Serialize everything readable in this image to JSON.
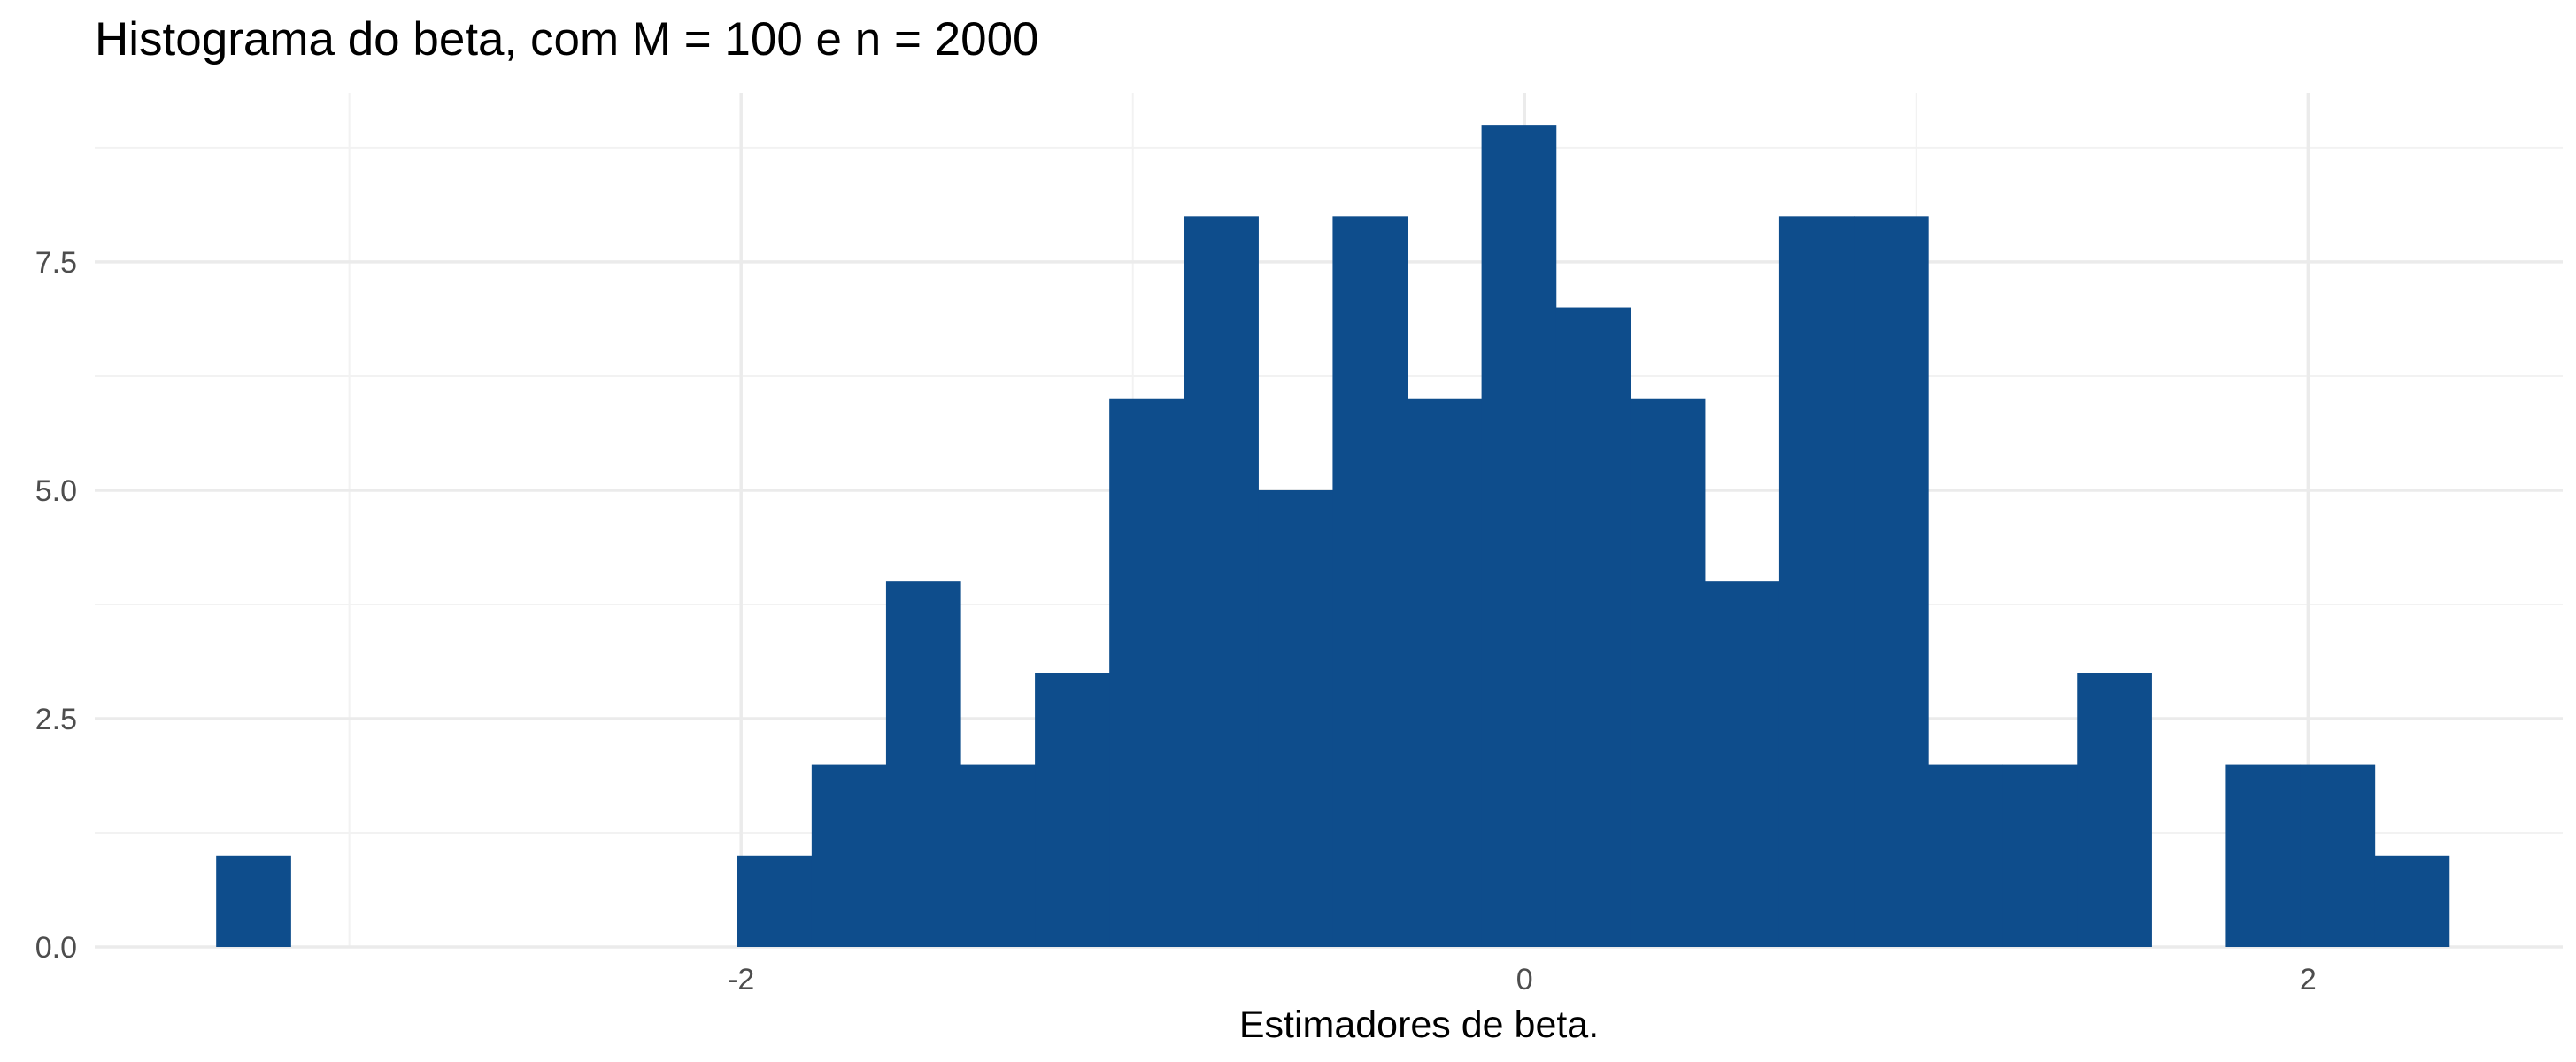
{
  "chart_data": {
    "type": "bar",
    "title": "Histograma do beta, com M = 100 e n = 2000",
    "xlabel": "Estimadores de beta.",
    "ylabel": "",
    "xlim": [
      -3.65,
      2.65
    ],
    "ylim": [
      0,
      9.35
    ],
    "bin_width": 0.19,
    "x_ticks": [
      -2,
      0,
      2
    ],
    "x_tick_labels": [
      "-2",
      "0",
      "2"
    ],
    "y_ticks": [
      0,
      2.5,
      5,
      7.5
    ],
    "y_tick_labels": [
      "0.0",
      "2.5",
      "5.0",
      "7.5"
    ],
    "grid": true,
    "bar_color": "#0e4d8c",
    "bins": [
      {
        "x0": -3.34,
        "x1": -3.15,
        "count": 1
      },
      {
        "x0": -2.01,
        "x1": -1.82,
        "count": 1
      },
      {
        "x0": -1.82,
        "x1": -1.63,
        "count": 2
      },
      {
        "x0": -1.63,
        "x1": -1.44,
        "count": 4
      },
      {
        "x0": -1.44,
        "x1": -1.25,
        "count": 2
      },
      {
        "x0": -1.25,
        "x1": -1.06,
        "count": 3
      },
      {
        "x0": -1.06,
        "x1": -0.87,
        "count": 6
      },
      {
        "x0": -0.87,
        "x1": -0.68,
        "count": 8
      },
      {
        "x0": -0.68,
        "x1": -0.49,
        "count": 5
      },
      {
        "x0": -0.49,
        "x1": -0.3,
        "count": 8
      },
      {
        "x0": -0.3,
        "x1": -0.11,
        "count": 6
      },
      {
        "x0": -0.11,
        "x1": 0.08,
        "count": 9
      },
      {
        "x0": 0.08,
        "x1": 0.27,
        "count": 7
      },
      {
        "x0": 0.27,
        "x1": 0.46,
        "count": 6
      },
      {
        "x0": 0.46,
        "x1": 0.65,
        "count": 4
      },
      {
        "x0": 0.65,
        "x1": 0.84,
        "count": 8
      },
      {
        "x0": 0.84,
        "x1": 1.03,
        "count": 8
      },
      {
        "x0": 1.03,
        "x1": 1.22,
        "count": 2
      },
      {
        "x0": 1.22,
        "x1": 1.41,
        "count": 2
      },
      {
        "x0": 1.41,
        "x1": 1.6,
        "count": 3
      },
      {
        "x0": 1.79,
        "x1": 1.98,
        "count": 2
      },
      {
        "x0": 1.98,
        "x1": 2.17,
        "count": 2
      },
      {
        "x0": 2.17,
        "x1": 2.36,
        "count": 1
      }
    ]
  }
}
